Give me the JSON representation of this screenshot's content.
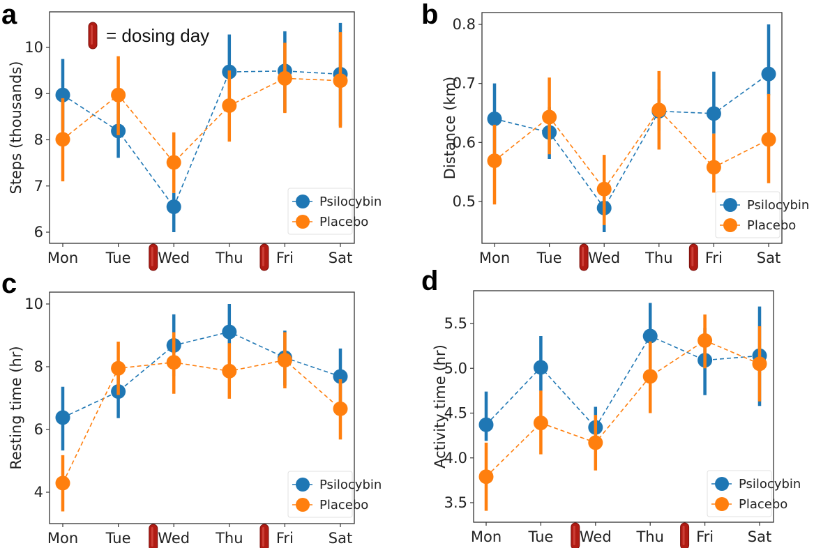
{
  "legend_note": "= dosing day",
  "chart_data": [
    {
      "panel": "a",
      "type": "line",
      "ylabel": "Steps (thousands)",
      "categories": [
        "Mon",
        "Tue",
        "Wed",
        "Thu",
        "Fri",
        "Sat"
      ],
      "dosing_days": [
        "Wed",
        "Fri"
      ],
      "yticks": [
        6,
        7,
        8,
        9,
        10
      ],
      "ylim": [
        5.75,
        10.7
      ],
      "legend": "bottom-right",
      "series": [
        {
          "name": "Psilocybin",
          "color": "#1f77b4",
          "values": [
            8.97,
            8.19,
            6.55,
            9.47,
            9.49,
            9.42
          ],
          "err_low": [
            8.2,
            7.61,
            6.0,
            8.7,
            8.6,
            8.3
          ],
          "err_high": [
            9.75,
            8.8,
            6.85,
            10.28,
            10.35,
            10.53
          ]
        },
        {
          "name": "Placebo",
          "color": "#ff7f0e",
          "values": [
            8.01,
            8.97,
            7.51,
            8.74,
            9.33,
            9.28
          ],
          "err_low": [
            7.1,
            8.1,
            6.85,
            7.96,
            8.58,
            8.26
          ],
          "err_high": [
            8.9,
            9.81,
            8.16,
            9.5,
            10.1,
            10.33
          ]
        }
      ]
    },
    {
      "panel": "b",
      "type": "line",
      "ylabel": "Distance (km)",
      "categories": [
        "Mon",
        "Tue",
        "Wed",
        "Thu",
        "Fri",
        "Sat"
      ],
      "dosing_days": [
        "Wed",
        "Fri"
      ],
      "yticks": [
        0.5,
        0.6,
        0.7,
        0.8
      ],
      "ylim": [
        0.43,
        0.82
      ],
      "legend": "bottom-right",
      "series": [
        {
          "name": "Psilocybin",
          "color": "#1f77b4",
          "values": [
            0.64,
            0.617,
            0.489,
            0.653,
            0.649,
            0.716
          ],
          "err_low": [
            0.58,
            0.572,
            0.448,
            0.62,
            0.615,
            0.68
          ],
          "err_high": [
            0.7,
            0.66,
            0.53,
            0.69,
            0.72,
            0.8
          ]
        },
        {
          "name": "Placebo",
          "color": "#ff7f0e",
          "values": [
            0.569,
            0.643,
            0.521,
            0.655,
            0.558,
            0.605
          ],
          "err_low": [
            0.495,
            0.58,
            0.46,
            0.588,
            0.515,
            0.531
          ],
          "err_high": [
            0.63,
            0.71,
            0.579,
            0.721,
            0.615,
            0.682
          ]
        }
      ]
    },
    {
      "panel": "c",
      "type": "line",
      "ylabel": "Resting time (hr)",
      "categories": [
        "Mon",
        "Tue",
        "Wed",
        "Thu",
        "Fri",
        "Sat"
      ],
      "dosing_days": [
        "Wed",
        "Fri"
      ],
      "yticks": [
        4,
        6,
        8,
        10
      ],
      "ylim": [
        3.0,
        10.4
      ],
      "legend": "bottom-right",
      "series": [
        {
          "name": "Psilocybin",
          "color": "#1f77b4",
          "values": [
            6.38,
            7.21,
            8.68,
            9.11,
            8.29,
            7.69
          ],
          "err_low": [
            5.33,
            6.36,
            7.7,
            8.2,
            7.4,
            6.8
          ],
          "err_high": [
            7.36,
            8.0,
            9.67,
            10.0,
            9.15,
            8.58
          ]
        },
        {
          "name": "Placebo",
          "color": "#ff7f0e",
          "values": [
            4.29,
            7.95,
            8.14,
            7.86,
            8.21,
            6.66
          ],
          "err_low": [
            3.39,
            7.1,
            7.14,
            6.98,
            7.31,
            5.68
          ],
          "err_high": [
            5.18,
            8.8,
            9.1,
            8.75,
            9.1,
            7.6
          ]
        }
      ]
    },
    {
      "panel": "d",
      "type": "line",
      "ylabel": "Activity time (hr)",
      "categories": [
        "Mon",
        "Tue",
        "Wed",
        "Thu",
        "Fri",
        "Sat"
      ],
      "dosing_days": [
        "Wed",
        "Fri"
      ],
      "yticks": [
        3.5,
        4.0,
        4.5,
        5.0,
        5.5
      ],
      "ylim": [
        3.3,
        5.85
      ],
      "legend": "bottom-right",
      "series": [
        {
          "name": "Psilocybin",
          "color": "#1f77b4",
          "values": [
            4.37,
            5.01,
            4.34,
            5.36,
            5.09,
            5.14
          ],
          "err_low": [
            4.19,
            4.75,
            4.2,
            5.0,
            4.7,
            4.58
          ],
          "err_high": [
            4.74,
            5.36,
            4.57,
            5.73,
            5.45,
            5.69
          ]
        },
        {
          "name": "Placebo",
          "color": "#ff7f0e",
          "values": [
            3.79,
            4.39,
            4.17,
            4.91,
            5.31,
            5.05
          ],
          "err_low": [
            3.41,
            4.04,
            3.86,
            4.5,
            5.0,
            4.63
          ],
          "err_high": [
            4.17,
            4.75,
            4.48,
            5.3,
            5.6,
            5.47
          ]
        }
      ]
    }
  ]
}
